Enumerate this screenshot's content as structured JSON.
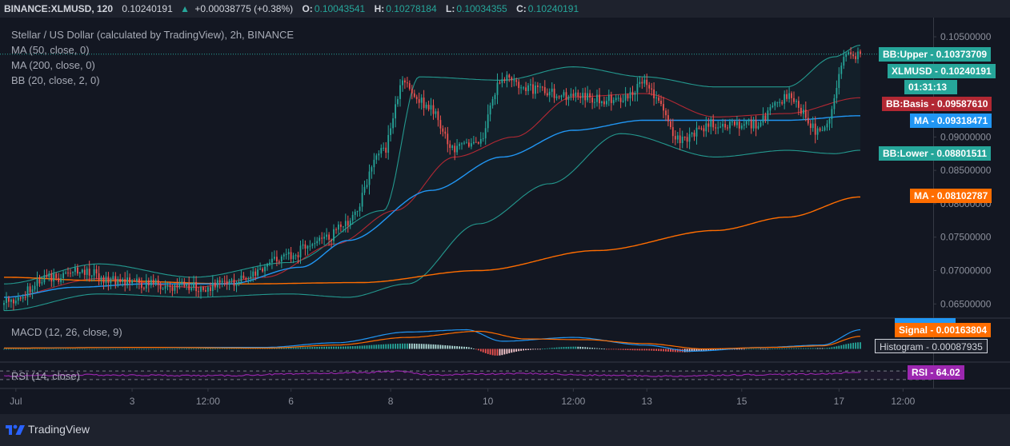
{
  "header": {
    "symbol": "BINANCE:XLMUSD, 120",
    "price": "0.10240191",
    "arrow": "▲",
    "change": "+0.00038775 (+0.38%)",
    "o_key": "O:",
    "o_val": "0.10043541",
    "h_key": "H:",
    "h_val": "0.10278184",
    "l_key": "L:",
    "l_val": "0.10034355",
    "c_key": "C:",
    "c_val": "0.10240191"
  },
  "legend": {
    "title": "Stellar / US Dollar (calculated by TradingView), 2h, BINANCE",
    "ma50": "MA (50, close, 0)",
    "ma200": "MA (200, close, 0)",
    "bb": "BB (20, close, 2, 0)",
    "macd": "MACD (12, 26, close, 9)",
    "rsi": "RSI (14, close)"
  },
  "price_labels": [
    {
      "name": "BB:Upper",
      "value": "0.10373709",
      "color": "#26a69a"
    },
    {
      "name": "XLMUSD",
      "value": "0.10240191",
      "color": "#26a69a"
    },
    {
      "name": "countdown",
      "value": "01:31:13",
      "color": "#26a69a"
    },
    {
      "name": "BB:Basis",
      "value": "0.09587610",
      "color": "#b22833"
    },
    {
      "name": "MA",
      "value": "0.09318471",
      "color": "#2196f3"
    },
    {
      "name": "BB:Lower",
      "value": "0.08801511",
      "color": "#26a69a"
    },
    {
      "name": "MA",
      "value": "0.08102787",
      "color": "#ff6d00"
    }
  ],
  "indicator_labels": [
    {
      "name": "Signal",
      "value": "0.00163804",
      "color": "#ff6d00"
    },
    {
      "name": "Histogram",
      "value": "0.00087935",
      "color": "#b2b5be"
    },
    {
      "name": "RSI",
      "value": "64.02",
      "color": "#9c27b0"
    }
  ],
  "footer": {
    "brand": "TradingView"
  },
  "colors": {
    "background": "#131722",
    "up": "#26a69a",
    "down": "#ef5350",
    "ma50": "#2196f3",
    "ma200": "#ff6d00",
    "bb_band": "#26a69a",
    "bb_basis": "#b22833",
    "rsi": "#9c27b0",
    "grid": "#2a2e39"
  },
  "chart_data": [
    {
      "type": "candlestick",
      "title": "Stellar / US Dollar (calculated by TradingView), 2h, BINANCE",
      "x_tick_labels": [
        "Jul",
        "3",
        "12:00",
        "6",
        "8",
        "10",
        "12:00",
        "13",
        "15",
        "17",
        "12:00"
      ],
      "y_ticks": [
        "0.10500000",
        "0.10000000",
        "0.09500000",
        "0.09000000",
        "0.08500000",
        "0.08000000",
        "0.07500000",
        "0.07000000",
        "0.06500000"
      ],
      "ylim": [
        0.063,
        0.1062
      ],
      "close_anchors": [
        [
          0,
          0.0652
        ],
        [
          20,
          0.0688
        ],
        [
          35,
          0.07
        ],
        [
          45,
          0.0685
        ],
        [
          65,
          0.0678
        ],
        [
          85,
          0.0675
        ],
        [
          100,
          0.0685
        ],
        [
          115,
          0.0715
        ],
        [
          135,
          0.0745
        ],
        [
          145,
          0.0775
        ],
        [
          160,
          0.088
        ],
        [
          168,
          0.098
        ],
        [
          178,
          0.095
        ],
        [
          190,
          0.088
        ],
        [
          200,
          0.0895
        ],
        [
          210,
          0.099
        ],
        [
          225,
          0.097
        ],
        [
          240,
          0.096
        ],
        [
          258,
          0.0955
        ],
        [
          270,
          0.098
        ],
        [
          285,
          0.0895
        ],
        [
          300,
          0.092
        ],
        [
          316,
          0.092
        ],
        [
          330,
          0.096
        ],
        [
          345,
          0.0905
        ],
        [
          355,
          0.102
        ],
        [
          361,
          0.1024
        ]
      ],
      "ma50_anchors": [
        [
          0,
          0.066
        ],
        [
          30,
          0.0675
        ],
        [
          60,
          0.068
        ],
        [
          95,
          0.068
        ],
        [
          125,
          0.0705
        ],
        [
          145,
          0.0745
        ],
        [
          180,
          0.082
        ],
        [
          210,
          0.087
        ],
        [
          240,
          0.091
        ],
        [
          270,
          0.0925
        ],
        [
          300,
          0.0925
        ],
        [
          330,
          0.0925
        ],
        [
          361,
          0.09318471
        ]
      ],
      "ma200_anchors": [
        [
          0,
          0.069
        ],
        [
          40,
          0.0685
        ],
        [
          100,
          0.068
        ],
        [
          150,
          0.0682
        ],
        [
          200,
          0.07
        ],
        [
          250,
          0.073
        ],
        [
          300,
          0.076
        ],
        [
          330,
          0.078
        ],
        [
          361,
          0.08102787
        ]
      ],
      "bb_basis_anchors": [
        [
          0,
          0.066
        ],
        [
          40,
          0.0688
        ],
        [
          80,
          0.0675
        ],
        [
          110,
          0.069
        ],
        [
          140,
          0.074
        ],
        [
          165,
          0.079
        ],
        [
          190,
          0.087
        ],
        [
          215,
          0.09
        ],
        [
          240,
          0.096
        ],
        [
          270,
          0.0965
        ],
        [
          300,
          0.093
        ],
        [
          330,
          0.0935
        ],
        [
          361,
          0.0958761
        ]
      ],
      "bb_upper_anchors": [
        [
          0,
          0.068
        ],
        [
          40,
          0.071
        ],
        [
          80,
          0.069
        ],
        [
          120,
          0.0712
        ],
        [
          160,
          0.079
        ],
        [
          175,
          0.099
        ],
        [
          210,
          0.0985
        ],
        [
          240,
          0.1005
        ],
        [
          270,
          0.099
        ],
        [
          300,
          0.0975
        ],
        [
          330,
          0.0975
        ],
        [
          350,
          0.102
        ],
        [
          361,
          0.10373709
        ]
      ],
      "bb_lower_anchors": [
        [
          0,
          0.064
        ],
        [
          40,
          0.0665
        ],
        [
          80,
          0.066
        ],
        [
          120,
          0.0665
        ],
        [
          145,
          0.066
        ],
        [
          170,
          0.068
        ],
        [
          200,
          0.077
        ],
        [
          230,
          0.083
        ],
        [
          260,
          0.0905
        ],
        [
          300,
          0.087
        ],
        [
          330,
          0.088
        ],
        [
          350,
          0.0875
        ],
        [
          361,
          0.08801511
        ]
      ],
      "last_close": 0.10240191
    },
    {
      "type": "macd",
      "title": "MACD (12, 26, close, 9)",
      "signal_last": 0.00163804,
      "histogram_last": 0.00087935,
      "macd_anchors": [
        [
          0,
          0.0001
        ],
        [
          60,
          0.0002
        ],
        [
          110,
          0.0002
        ],
        [
          140,
          0.0008
        ],
        [
          170,
          0.0022
        ],
        [
          195,
          0.0025
        ],
        [
          210,
          0.001
        ],
        [
          240,
          0.0015
        ],
        [
          270,
          0.0005
        ],
        [
          290,
          -0.0003
        ],
        [
          320,
          0.0002
        ],
        [
          345,
          0.0005
        ],
        [
          361,
          0.0025
        ]
      ],
      "signal_anchors": [
        [
          0,
          0.0001
        ],
        [
          60,
          0.0002
        ],
        [
          110,
          0.0001
        ],
        [
          140,
          0.0005
        ],
        [
          170,
          0.0015
        ],
        [
          200,
          0.0023
        ],
        [
          220,
          0.0013
        ],
        [
          245,
          0.0012
        ],
        [
          270,
          0.0007
        ],
        [
          295,
          0.0
        ],
        [
          325,
          0.0002
        ],
        [
          345,
          0.0004
        ],
        [
          361,
          0.00163804
        ]
      ]
    },
    {
      "type": "line",
      "title": "RSI (14, close)",
      "last": 64.02,
      "ylim": [
        0,
        100
      ],
      "levels": [
        70,
        30
      ],
      "anchors": [
        [
          0,
          45
        ],
        [
          30,
          52
        ],
        [
          60,
          50
        ],
        [
          90,
          48
        ],
        [
          120,
          55
        ],
        [
          150,
          62
        ],
        [
          165,
          68
        ],
        [
          180,
          52
        ],
        [
          200,
          55
        ],
        [
          220,
          58
        ],
        [
          250,
          50
        ],
        [
          280,
          46
        ],
        [
          310,
          52
        ],
        [
          340,
          55
        ],
        [
          361,
          64.02
        ]
      ]
    }
  ]
}
